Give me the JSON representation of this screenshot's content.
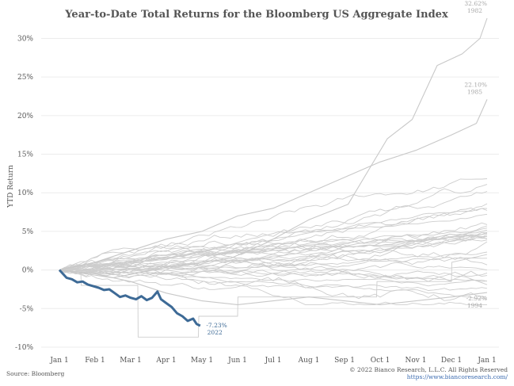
{
  "chart_data": {
    "type": "line",
    "title": "Year-to-Date Total Returns for the Bloomberg US Aggregate Index",
    "xlabel": "",
    "ylabel": "YTD Return",
    "x_ticks": [
      "Jan 1",
      "Feb 1",
      "Mar 1",
      "Apr 1",
      "May 1",
      "Jun 1",
      "Jul 1",
      "Aug 1",
      "Sep 1",
      "Oct 1",
      "Nov 1",
      "Dec 1",
      "Jan 1"
    ],
    "y_ticks": [
      "-10%",
      "-5%",
      "0%",
      "5%",
      "10%",
      "15%",
      "20%",
      "25%",
      "30%"
    ],
    "ylim": [
      -10,
      32
    ],
    "grid": "horizontal",
    "series": [
      {
        "name": "1982",
        "label": "32.62%",
        "color": "#c8c8c8",
        "x": [
          0,
          1.5,
          3.2,
          4.8,
          5.8,
          7.0,
          8.1,
          9.2,
          9.9,
          10.6,
          11.3,
          11.8,
          12.0
        ],
        "y": [
          0,
          -1.0,
          0.5,
          1.5,
          3.5,
          6.5,
          8.5,
          17.0,
          19.5,
          26.5,
          28.0,
          30.0,
          32.62
        ]
      },
      {
        "name": "1985",
        "label": "22.10%",
        "color": "#c8c8c8",
        "x": [
          0,
          1.0,
          2.0,
          3.0,
          4.0,
          5.0,
          6.0,
          7.0,
          8.0,
          9.0,
          10.0,
          11.0,
          11.7,
          12.0
        ],
        "y": [
          0,
          1.0,
          2.5,
          4.0,
          5.0,
          7.0,
          8.0,
          10.0,
          12.0,
          14.0,
          15.5,
          17.5,
          19.0,
          22.1
        ]
      },
      {
        "name": "1994",
        "label": "-2.92%",
        "color": "#c8c8c8",
        "x": [
          0,
          1.0,
          2.0,
          3.0,
          4.0,
          5.0,
          6.0,
          7.0,
          8.0,
          9.0,
          10.0,
          11.0,
          12.0
        ],
        "y": [
          0,
          -0.5,
          -1.5,
          -3.0,
          -4.0,
          -4.5,
          -4.0,
          -3.5,
          -4.0,
          -4.5,
          -4.0,
          -3.5,
          -2.92
        ]
      },
      {
        "name": "2022",
        "label": "-7.23%",
        "color": "#3d6a96",
        "highlight": true,
        "x": [
          0,
          0.2,
          0.35,
          0.5,
          0.65,
          0.8,
          0.95,
          1.1,
          1.25,
          1.4,
          1.55,
          1.7,
          1.85,
          2.0,
          2.15,
          2.3,
          2.45,
          2.6,
          2.75,
          2.85,
          3.0,
          3.15,
          3.3,
          3.45,
          3.6,
          3.75,
          3.85,
          3.95
        ],
        "y": [
          0,
          -1.0,
          -1.2,
          -1.6,
          -1.5,
          -1.9,
          -2.1,
          -2.3,
          -2.6,
          -2.5,
          -3.0,
          -3.5,
          -3.3,
          -3.6,
          -3.8,
          -3.4,
          -3.9,
          -3.6,
          -2.8,
          -3.8,
          -4.3,
          -4.8,
          -5.6,
          -6.0,
          -6.6,
          -6.3,
          -7.0,
          -7.23
        ]
      }
    ],
    "background_series_note": "additional unlabeled historical years drawn in light gray",
    "annotations": [
      {
        "text": "32.62%",
        "sub": "1982"
      },
      {
        "text": "22.10%",
        "sub": "1985"
      },
      {
        "text": "-2.92%",
        "sub": "1994"
      },
      {
        "text": "-7.23%",
        "sub": "2022"
      }
    ]
  },
  "footer": {
    "source": "Source: Bloomberg",
    "copyright": "© 2022 Bianco Research, L.L.C. All Rights Reserved",
    "url": "https://www.biancoresearch.com/"
  }
}
